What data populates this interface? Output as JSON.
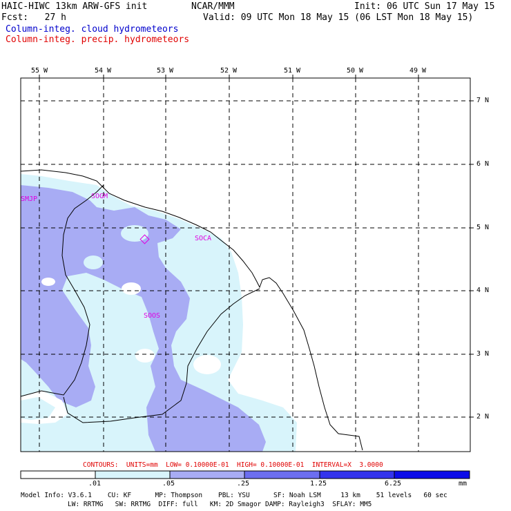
{
  "header": {
    "model_title": "HAIC-HIWC 13km ARW-GFS init",
    "org": "NCAR/MMM",
    "init": "Init: 06 UTC Sun 17 May 15",
    "fcst": "Fcst:   27 h",
    "valid": "Valid: 09 UTC Mon 18 May 15 (06 LST Mon 18 May 15)",
    "field_cloud": "Column-integ. cloud hydrometeors",
    "field_precip": "Column-integ. precip. hydrometeors"
  },
  "map": {
    "lon_labels": [
      "55 W",
      "54 W",
      "53 W",
      "52 W",
      "51 W",
      "50 W",
      "49 W"
    ],
    "lat_labels": [
      "7 N",
      "6 N",
      "5 N",
      "4 N",
      "3 N",
      "2 N"
    ],
    "stations": [
      {
        "id": "SMJP"
      },
      {
        "id": "SOGM"
      },
      {
        "id": "SOCA"
      },
      {
        "id": "SOOS"
      }
    ]
  },
  "contours_line": "CONTOURS:  UNITS=mm  LOW= 0.10000E-01  HIGH= 0.10000E-01  INTERVAL=X  3.0000",
  "colorbar": {
    "unit": "mm",
    "ticks": [
      ".01",
      ".05",
      ".25",
      "1.25",
      "6.25"
    ],
    "colors": [
      "#ffffff",
      "#d8f4fb",
      "#a8acf4",
      "#6c6ef0",
      "#3434ec",
      "#0c0ce8"
    ]
  },
  "footer": {
    "line1": "Model Info: V3.6.1    CU: KF      MP: Thompson    PBL: YSU      SF: Noah LSM     13 km    51 levels   60 sec",
    "line2": "LW: RRTMG   SW: RRTMG  DIFF: full   KM: 2D Smagor DAMP: Rayleigh3  SFLAY: MM5"
  },
  "colors": {
    "cloud_title": "#0000cc",
    "precip_title": "#e00000",
    "station": "#e000e0",
    "contours": "#e00000",
    "light_fill": "#d8f4fb",
    "medium_fill": "#a8acf4"
  }
}
